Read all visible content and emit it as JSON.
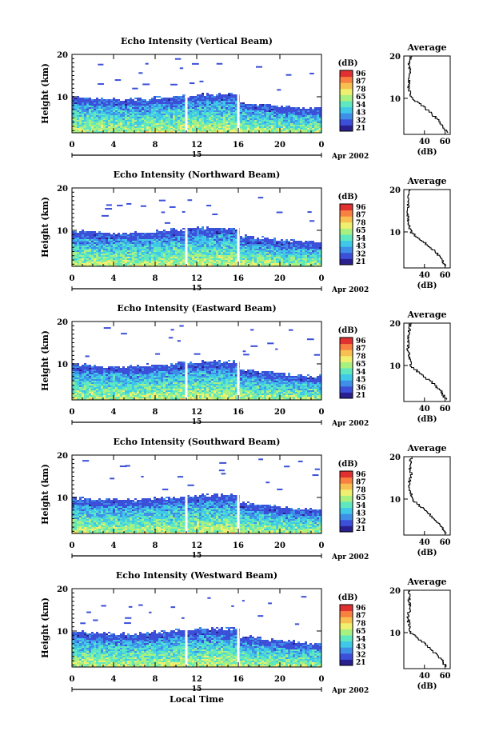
{
  "figure": {
    "xlabel_bottom": "Local Time",
    "month_label": "Apr 2002",
    "date_label": "15",
    "colorbar_unit": "(dB)",
    "colorbar_ticks": [
      "96",
      "87",
      "78",
      "65",
      "54",
      "43",
      "32",
      "21"
    ],
    "colorbar_ticks_alt": [
      "96",
      "87",
      "78",
      "65",
      "54",
      "45",
      "36",
      "21"
    ],
    "colorbar_colors": [
      "#2a1f8f",
      "#3b4fd8",
      "#3f8fe8",
      "#3fc8e8",
      "#5fe8c0",
      "#a8f080",
      "#f0f070",
      "#f8c050",
      "#f88040",
      "#e03030"
    ],
    "average_title": "Average",
    "average_xlabel": "(dB)",
    "average_xticks": [
      "40",
      "60"
    ],
    "ylabel": "Height (km)"
  },
  "chart_data": [
    {
      "type": "heatmap",
      "title": "Echo Intensity (Vertical Beam)",
      "ylabel": "Height (km)",
      "x_ticks": [
        "0",
        "4",
        "8",
        "12",
        "16",
        "20",
        "0"
      ],
      "xlim": [
        0,
        24
      ],
      "y_ticks": [
        "20",
        "10"
      ],
      "ylim": [
        1.5,
        20
      ],
      "colorbar": {
        "unit": "(dB)",
        "ticks": [
          "96",
          "87",
          "78",
          "65",
          "54",
          "43",
          "32",
          "21"
        ]
      },
      "average_profile": {
        "title": "Average",
        "xlabel": "(dB)",
        "x_ticks": [
          "40",
          "60"
        ],
        "xlim": [
          20,
          65
        ],
        "heights": [
          2,
          4,
          6,
          8,
          10,
          12,
          14,
          16,
          18,
          20
        ],
        "values": [
          62,
          57,
          49,
          40,
          28,
          25,
          25,
          26,
          25,
          27
        ]
      }
    },
    {
      "type": "heatmap",
      "title": "Echo Intensity (Northward Beam)",
      "ylabel": "Height (km)",
      "x_ticks": [
        "0",
        "4",
        "8",
        "12",
        "16",
        "20",
        "0"
      ],
      "xlim": [
        0,
        24
      ],
      "y_ticks": [
        "20",
        "10"
      ],
      "ylim": [
        1.5,
        20
      ],
      "colorbar": {
        "unit": "(dB)",
        "ticks": [
          "96",
          "87",
          "78",
          "65",
          "54",
          "43",
          "32",
          "21"
        ]
      },
      "average_profile": {
        "title": "Average",
        "xlabel": "(dB)",
        "x_ticks": [
          "40",
          "60"
        ],
        "xlim": [
          20,
          65
        ],
        "heights": [
          2,
          4,
          6,
          8,
          10,
          12,
          14,
          16,
          18,
          20
        ],
        "values": [
          61,
          56,
          48,
          38,
          27,
          25,
          24,
          24,
          25,
          25
        ]
      }
    },
    {
      "type": "heatmap",
      "title": "Echo Intensity (Eastward Beam)",
      "ylabel": "Height (km)",
      "x_ticks": [
        "0",
        "4",
        "8",
        "12",
        "16",
        "20",
        "0"
      ],
      "xlim": [
        0,
        24
      ],
      "y_ticks": [
        "20",
        "10"
      ],
      "ylim": [
        1.5,
        20
      ],
      "colorbar": {
        "unit": "(dB)",
        "ticks": [
          "96",
          "87",
          "78",
          "65",
          "54",
          "45",
          "36",
          "21"
        ]
      },
      "average_profile": {
        "title": "Average",
        "xlabel": "(dB)",
        "x_ticks": [
          "40",
          "60"
        ],
        "xlim": [
          20,
          65
        ],
        "heights": [
          2,
          4,
          6,
          8,
          10,
          12,
          14,
          16,
          18,
          20
        ],
        "values": [
          61,
          56,
          48,
          37,
          27,
          25,
          24,
          25,
          25,
          26
        ]
      }
    },
    {
      "type": "heatmap",
      "title": "Echo Intensity (Southward Beam)",
      "ylabel": "Height (km)",
      "x_ticks": [
        "0",
        "4",
        "8",
        "12",
        "16",
        "20",
        "0"
      ],
      "xlim": [
        0,
        24
      ],
      "y_ticks": [
        "20",
        "10"
      ],
      "ylim": [
        1.5,
        20
      ],
      "colorbar": {
        "unit": "(dB)",
        "ticks": [
          "96",
          "87",
          "78",
          "65",
          "54",
          "43",
          "32",
          "21"
        ]
      },
      "average_profile": {
        "title": "Average",
        "xlabel": "(dB)",
        "x_ticks": [
          "40",
          "60"
        ],
        "xlim": [
          20,
          65
        ],
        "heights": [
          2,
          4,
          6,
          8,
          10,
          12,
          14,
          16,
          18,
          20
        ],
        "values": [
          61,
          55,
          47,
          38,
          28,
          26,
          25,
          27,
          26,
          27
        ]
      }
    },
    {
      "type": "heatmap",
      "title": "Echo Intensity (Westward Beam)",
      "ylabel": "Height (km)",
      "x_ticks": [
        "0",
        "4",
        "8",
        "12",
        "16",
        "20",
        "0"
      ],
      "xlim": [
        0,
        24
      ],
      "y_ticks": [
        "20",
        "10"
      ],
      "ylim": [
        1.5,
        20
      ],
      "colorbar": {
        "unit": "(dB)",
        "ticks": [
          "96",
          "87",
          "78",
          "65",
          "54",
          "43",
          "32",
          "21"
        ]
      },
      "average_profile": {
        "title": "Average",
        "xlabel": "(dB)",
        "x_ticks": [
          "40",
          "60"
        ],
        "xlim": [
          20,
          65
        ],
        "heights": [
          2,
          4,
          6,
          8,
          10,
          12,
          14,
          16,
          18,
          20
        ],
        "values": [
          61,
          56,
          47,
          38,
          27,
          25,
          24,
          26,
          25,
          25
        ]
      }
    }
  ]
}
